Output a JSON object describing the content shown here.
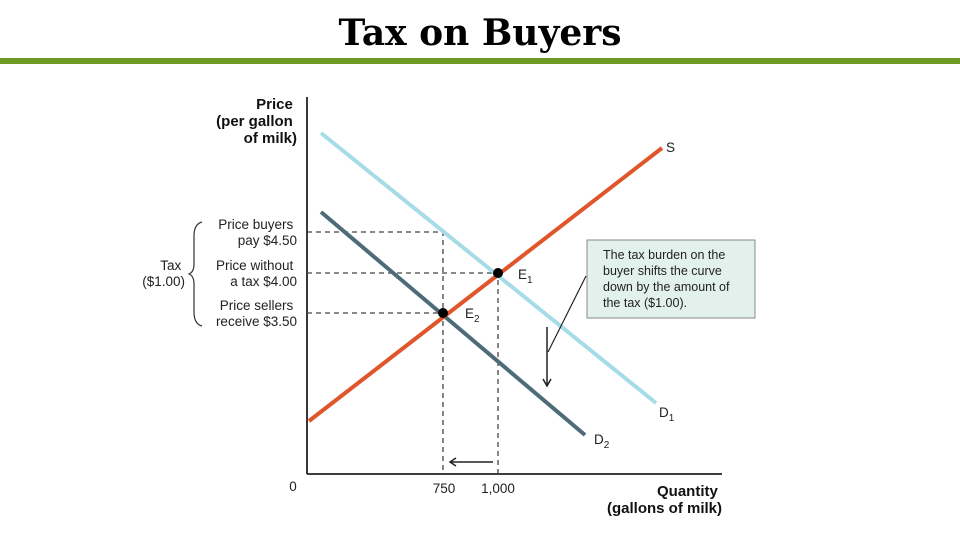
{
  "title": "Tax on Buyers",
  "colors": {
    "accent_rule": "#6e9a22",
    "supply": "#e0562a",
    "demand_original": "#a6dbe8",
    "demand_shifted": "#4e6b78",
    "callout_fill": "#e3f1ec"
  },
  "axes": {
    "y_label": [
      "Price",
      "(per gallon",
      "of milk)"
    ],
    "x_label": [
      "Quantity",
      "(gallons of milk)"
    ],
    "origin": "0",
    "x_ticks": [
      "750",
      "1,000"
    ]
  },
  "price_labels": {
    "buyers": [
      "Price buyers",
      "pay $4.50"
    ],
    "without": [
      "Price without",
      "a tax $4.00"
    ],
    "sellers": [
      "Price sellers",
      "receive $3.50"
    ],
    "tax": [
      "Tax",
      "($1.00)"
    ]
  },
  "curves": {
    "supply": "S",
    "d1": "D",
    "d1_sub": "1",
    "d2": "D",
    "d2_sub": "2"
  },
  "points": {
    "e1": "E",
    "e1_sub": "1",
    "e2": "E",
    "e2_sub": "2"
  },
  "callout": [
    "The tax burden on the",
    "buyer shifts the curve",
    "down by the amount of",
    "the tax ($1.00)."
  ]
}
